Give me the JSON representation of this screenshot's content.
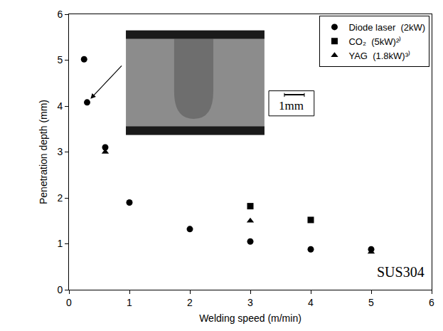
{
  "chart_data": {
    "type": "scatter",
    "xlabel": "Welding speed (m/min)",
    "ylabel": "Penetration depth (mm)",
    "xlim": [
      0,
      6
    ],
    "ylim": [
      0,
      6
    ],
    "xticks": [
      0,
      1,
      2,
      3,
      4,
      5,
      6
    ],
    "yticks": [
      0,
      1,
      2,
      3,
      4,
      5,
      6
    ],
    "grid": false,
    "legend": "upper right",
    "series": [
      {
        "name": "Diode laser  (2kW)",
        "color": "#000000",
        "marker": "circle",
        "x": [
          0.25,
          0.3,
          0.6,
          1,
          2,
          3,
          4,
          5
        ],
        "values": [
          5.02,
          4.08,
          3.1,
          1.9,
          1.32,
          1.05,
          0.88,
          0.88
        ]
      },
      {
        "name": "CO₂  (5kW)²⁾",
        "color": "#000000",
        "marker": "square",
        "x": [
          3,
          4
        ],
        "values": [
          1.82,
          1.52
        ]
      },
      {
        "name": "YAG  (1.8kW)³⁾",
        "color": "#000000",
        "marker": "triangle-up",
        "x": [
          0.6,
          3,
          5
        ],
        "values": [
          3.0,
          1.5,
          0.82
        ]
      }
    ],
    "annotations": [
      "1mm",
      "SUS304"
    ]
  }
}
